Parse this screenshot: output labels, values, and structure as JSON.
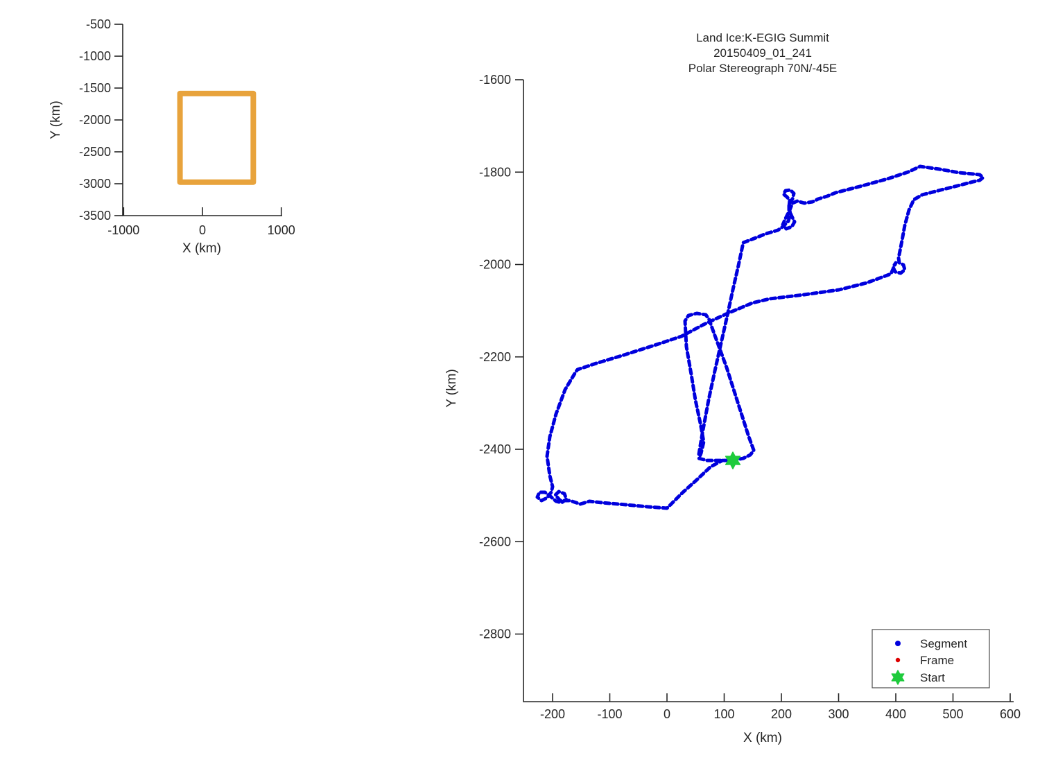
{
  "figure": {
    "background": "#ffffff"
  },
  "colors": {
    "track_blue": "#0000dd",
    "frame_red": "#dd0000",
    "start_green": "#1ecb3c",
    "overview_box_orange": "#e8a33c",
    "axis": "#262626",
    "text": "#262626",
    "legend_border": "#4d4d4d"
  },
  "chart_data": [
    {
      "type": "line",
      "name": "overview-map",
      "title": "",
      "xlabel": "X (km)",
      "ylabel": "Y (km)",
      "x_ticks": [
        -1000,
        0,
        1000
      ],
      "y_ticks": [
        -500,
        -1000,
        -1500,
        -2000,
        -2500,
        -3000,
        -3500
      ],
      "xlim": [
        -1011,
        1012
      ],
      "ylim": [
        -500,
        -3500
      ],
      "grid": false,
      "series": [
        {
          "name": "coverage-box",
          "kind": "rectangle-outline",
          "color": "#e8a33c",
          "x_range": [
            -285,
            645
          ],
          "y_range": [
            -1585,
            -2975
          ]
        }
      ]
    },
    {
      "type": "scatter",
      "name": "flight-track",
      "title_lines": [
        "Land Ice:K-EGIG Summit",
        "20150409_01_241",
        "Polar Stereograph 70N/-45E"
      ],
      "xlabel": "X (km)",
      "ylabel": "Y (km)",
      "x_ticks": [
        -200,
        -100,
        0,
        100,
        200,
        300,
        400,
        500,
        600
      ],
      "y_ticks": [
        -1600,
        -1800,
        -2000,
        -2200,
        -2400,
        -2600,
        -2800
      ],
      "xlim": [
        -251,
        606
      ],
      "ylim": [
        -1600,
        -2946
      ],
      "grid": false,
      "legend": {
        "position": "lower-right",
        "entries": [
          {
            "label": "Segment",
            "marker": "dot",
            "color": "#0000dd"
          },
          {
            "label": "Frame",
            "marker": "dot",
            "color": "#dd0000"
          },
          {
            "label": "Start",
            "marker": "hexagram",
            "color": "#1ecb3c"
          }
        ]
      },
      "start_point": {
        "x": 115.2,
        "y": -2424.1
      },
      "track_segments": [
        [
          [
            151.5,
            -2401.5
          ],
          [
            143.0,
            -2373.0
          ],
          [
            122.4,
            -2293.4
          ],
          [
            104.2,
            -2222.9
          ],
          [
            87.3,
            -2165.9
          ],
          [
            77.6,
            -2132.9
          ],
          [
            73.9,
            -2119.4
          ],
          [
            67.9,
            -2108.8
          ],
          [
            52.1,
            -2105.8
          ],
          [
            37.6,
            -2110.3
          ],
          [
            31.5,
            -2122.3
          ],
          [
            33.9,
            -2177.9
          ],
          [
            42.4,
            -2237.9
          ],
          [
            49.7,
            -2293.4
          ],
          [
            58.2,
            -2343.0
          ],
          [
            64.2,
            -2384.0
          ],
          [
            59.4,
            -2409.0
          ],
          [
            55.8,
            -2419.6
          ],
          [
            70.3,
            -2424.1
          ],
          [
            97.0,
            -2424.1
          ],
          [
            115.2,
            -2424.1
          ],
          [
            133.3,
            -2419.6
          ],
          [
            145.5,
            -2412.1
          ],
          [
            151.5,
            -2403.1
          ],
          [
            151.5,
            -2401.5
          ]
        ],
        [
          [
            55.8,
            -2410.5
          ],
          [
            61.8,
            -2365.5
          ],
          [
            72.7,
            -2293.4
          ],
          [
            83.6,
            -2230.4
          ],
          [
            94.5,
            -2170.4
          ],
          [
            105.5,
            -2110.3
          ],
          [
            115.2,
            -2054.8
          ],
          [
            124.8,
            -2002.3
          ],
          [
            133.3,
            -1952.7
          ],
          [
            149.1,
            -1945.2
          ],
          [
            173.3,
            -1933.2
          ],
          [
            193.9,
            -1925.7
          ],
          [
            202.4,
            -1918.2
          ],
          [
            212.1,
            -1906.2
          ],
          [
            215.8,
            -1891.2
          ],
          [
            213.3,
            -1874.7
          ],
          [
            214.5,
            -1861.2
          ],
          [
            209.7,
            -1853.7
          ],
          [
            203.6,
            -1847.6
          ],
          [
            207.3,
            -1840.1
          ],
          [
            215.8,
            -1838.6
          ],
          [
            221.8,
            -1846.1
          ],
          [
            219.4,
            -1858.2
          ],
          [
            213.3,
            -1867.2
          ],
          [
            213.3,
            -1882.2
          ],
          [
            218.2,
            -1895.7
          ],
          [
            223.0,
            -1907.7
          ],
          [
            218.2,
            -1918.2
          ],
          [
            208.5,
            -1922.7
          ],
          [
            202.4,
            -1913.7
          ],
          [
            207.3,
            -1900.2
          ],
          [
            214.5,
            -1882.2
          ],
          [
            219.4,
            -1867.2
          ],
          [
            227.9,
            -1862.7
          ],
          [
            240.0,
            -1867.2
          ],
          [
            254.5,
            -1864.2
          ],
          [
            264.2,
            -1858.2
          ],
          [
            280.0,
            -1852.2
          ],
          [
            294.5,
            -1844.6
          ],
          [
            336.9,
            -1831.1
          ],
          [
            385.5,
            -1814.6
          ],
          [
            421.8,
            -1799.6
          ],
          [
            442.4,
            -1787.6
          ],
          [
            476.4,
            -1793.6
          ],
          [
            510.3,
            -1801.1
          ],
          [
            535.8,
            -1804.1
          ],
          [
            546.7,
            -1805.6
          ],
          [
            552.7,
            -1811.6
          ],
          [
            546.7,
            -1817.6
          ],
          [
            535.8,
            -1820.6
          ],
          [
            512.7,
            -1828.1
          ],
          [
            478.8,
            -1838.6
          ],
          [
            446.1,
            -1849.1
          ],
          [
            431.5,
            -1859.7
          ],
          [
            423.0,
            -1882.2
          ],
          [
            415.8,
            -1915.2
          ],
          [
            409.7,
            -1955.7
          ],
          [
            404.8,
            -1985.7
          ],
          [
            406.1,
            -1996.2
          ],
          [
            413.3,
            -2000.7
          ],
          [
            415.8,
            -2011.3
          ],
          [
            408.5,
            -2018.8
          ],
          [
            398.8,
            -2015.8
          ],
          [
            395.2,
            -2005.3
          ],
          [
            400.0,
            -1996.2
          ],
          [
            391.5,
            -2020.3
          ],
          [
            349.1,
            -2039.8
          ],
          [
            300.6,
            -2054.8
          ],
          [
            240.0,
            -2065.3
          ],
          [
            179.4,
            -2074.3
          ],
          [
            149.1,
            -2083.3
          ],
          [
            103.0,
            -2107.3
          ],
          [
            64.2,
            -2129.9
          ],
          [
            25.5,
            -2155.4
          ],
          [
            -14.5,
            -2171.9
          ],
          [
            -75.2,
            -2195.9
          ],
          [
            -123.6,
            -2213.9
          ],
          [
            -156.4,
            -2227.4
          ],
          [
            -160.0,
            -2233.4
          ],
          [
            -178.2,
            -2270.9
          ],
          [
            -193.9,
            -2323.4
          ],
          [
            -204.8,
            -2373.0
          ],
          [
            -209.7,
            -2415.1
          ],
          [
            -204.8,
            -2457.1
          ],
          [
            -200.0,
            -2481.1
          ],
          [
            -202.4,
            -2493.1
          ],
          [
            -209.7,
            -2505.1
          ],
          [
            -219.4,
            -2511.1
          ],
          [
            -226.7,
            -2503.6
          ],
          [
            -223.0,
            -2493.1
          ],
          [
            -213.3,
            -2493.1
          ],
          [
            -203.6,
            -2502.1
          ],
          [
            -193.9,
            -2512.6
          ],
          [
            -184.2,
            -2515.6
          ],
          [
            -175.8,
            -2508.1
          ],
          [
            -179.4,
            -2496.1
          ],
          [
            -189.1,
            -2491.6
          ],
          [
            -195.2,
            -2499.1
          ],
          [
            -186.7,
            -2511.1
          ],
          [
            -169.7,
            -2511.1
          ],
          [
            -151.5,
            -2518.6
          ],
          [
            -135.8,
            -2512.6
          ],
          [
            -113.9,
            -2515.6
          ],
          [
            -71.5,
            -2520.1
          ],
          [
            -32.7,
            -2524.6
          ],
          [
            0.0,
            -2527.6
          ],
          [
            27.9,
            -2493.1
          ],
          [
            52.1,
            -2466.1
          ],
          [
            76.4,
            -2437.6
          ],
          [
            97.0,
            -2424.1
          ]
        ]
      ]
    }
  ]
}
